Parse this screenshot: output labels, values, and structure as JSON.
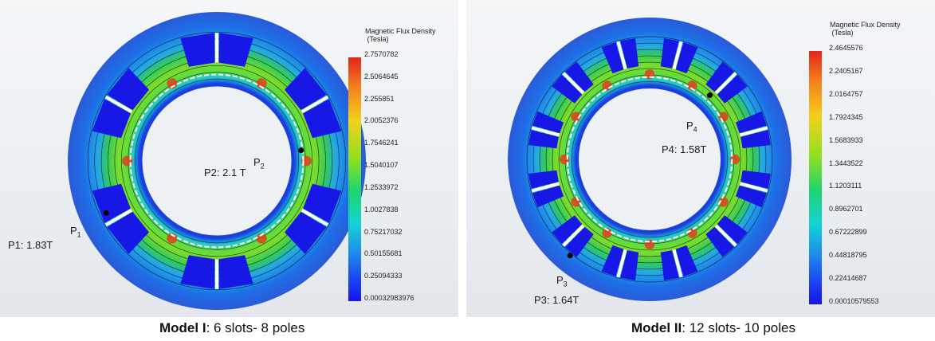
{
  "models": [
    {
      "caption_bold": "Model I",
      "caption_rest": ": 6 slots- 8 poles",
      "legend_title": "Magnetic Flux Density\n (Tesla)",
      "legend_ticks": [
        "2.7570782",
        "2.5064645",
        "2.255851",
        "2.0052376",
        "1.7546241",
        "1.5040107",
        "1.2533972",
        "1.0027838",
        "0.75217032",
        "0.50155681",
        "0.25094333",
        "0.00032983976"
      ],
      "slots": 6,
      "points": [
        {
          "name": "P1",
          "value_label": "P1: 1.83T"
        },
        {
          "name": "P2",
          "value_label": "P2: 2.1 T"
        }
      ]
    },
    {
      "caption_bold": "Model II",
      "caption_rest": ": 12 slots- 10 poles",
      "legend_title": "Magnetic Flux Density\n (Tesla)",
      "legend_ticks": [
        "2.4645576",
        "2.2405167",
        "2.0164757",
        "1.7924345",
        "1.5683933",
        "1.3443522",
        "1.1203111",
        "0.8962701",
        "0.67222899",
        "0.44818795",
        "0.22414687",
        "0.00010579553"
      ],
      "slots": 12,
      "points": [
        {
          "name": "P3",
          "value_label": "P3: 1.64T"
        },
        {
          "name": "P4",
          "value_label": "P4: 1.58T"
        }
      ]
    }
  ]
}
